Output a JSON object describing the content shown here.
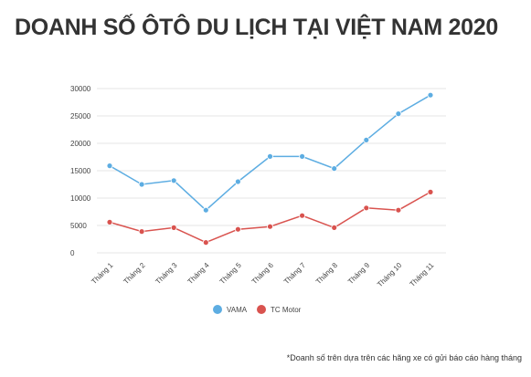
{
  "title": "DOANH SỐ ÔTÔ DU LỊCH TẠI VIỆT NAM 2020",
  "footnote": "*Doanh số trên dựa trên các hãng xe có gửi báo cáo hàng tháng",
  "chart_data": {
    "type": "line",
    "categories": [
      "Tháng 1",
      "Tháng 2",
      "Tháng 3",
      "Tháng 4",
      "Tháng 5",
      "Tháng 6",
      "Tháng 7",
      "Tháng 8",
      "Tháng 9",
      "Tháng 10",
      "Tháng 11"
    ],
    "series": [
      {
        "name": "VAMA",
        "color": "#5dade2",
        "values": [
          15900,
          12500,
          13200,
          7800,
          13000,
          17600,
          17600,
          15400,
          20600,
          25400,
          28800
        ]
      },
      {
        "name": "TC Motor",
        "color": "#d9534f",
        "values": [
          5600,
          3900,
          4600,
          1900,
          4300,
          4800,
          6800,
          4600,
          8200,
          7800,
          11100
        ]
      }
    ],
    "yticks": [
      "0",
      "5000",
      "10000",
      "15000",
      "20000",
      "25000",
      "30000"
    ],
    "ylim": [
      0,
      30000
    ],
    "grid": true,
    "legend": "bottom-center"
  }
}
